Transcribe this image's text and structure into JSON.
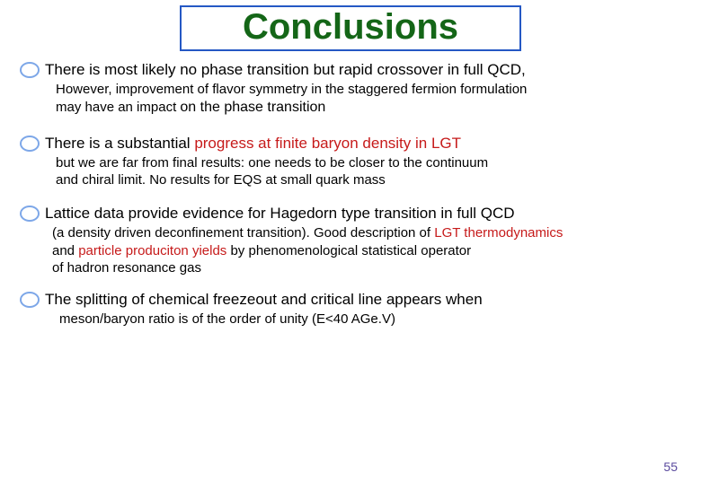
{
  "colors": {
    "title_border": "#2558c4",
    "title_text": "#146617",
    "bullet_border": "#7da7e8",
    "main_text": "#000000",
    "red": "#c61a1a",
    "body_text": "#000000",
    "pagenum": "#5a4a9e"
  },
  "fonts": {
    "title_size": 40,
    "main_size": 17,
    "sub_size": 15
  },
  "title": "Conclusions",
  "b1": {
    "main": "There is most likely no phase transition but rapid crossover in full QCD,",
    "sub_l1a": "However, improvement of flavor symmetry in the staggered fermion formulation",
    "sub_l2a": "may have an impact ",
    "sub_l2b": "on the phase transition"
  },
  "b2": {
    "main_a": "There is a substantial ",
    "main_b": "progress at finite  baryon density  in LGT",
    "sub_l1": "but we are far from final results: one needs to be closer to the continuum",
    "sub_l2": "and chiral limit. No results for EQS at small quark mass"
  },
  "b3": {
    "main": "Lattice data provide evidence for Hagedorn type transition in full QCD",
    "sub_l1a": "(a density driven deconfinement transition). Good description of ",
    "sub_l1b": "LGT thermodynamics",
    "sub_l2a": "and ",
    "sub_l2b": "particle produciton yields ",
    "sub_l2c": "by phenomenological statistical operator",
    "sub_l3": "of hadron resonance gas"
  },
  "b4": {
    "main": "The splitting of chemical freezeout and critical line  appears when",
    "sub_l1": "meson/baryon ratio is of the order of unity (E<40 AGe.V)"
  },
  "page_number": "55"
}
